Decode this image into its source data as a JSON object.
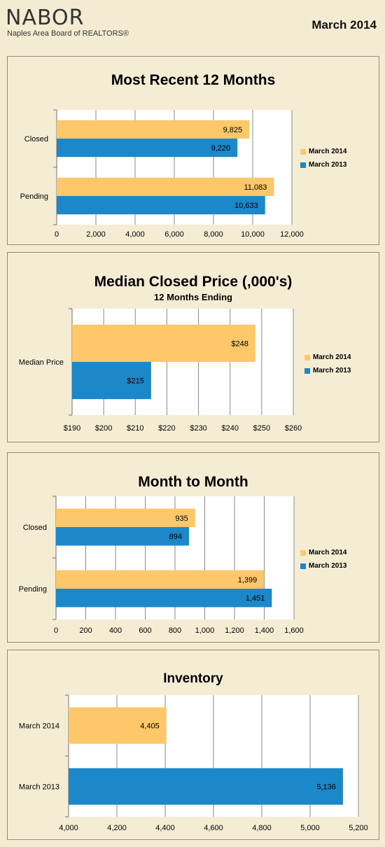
{
  "header": {
    "logo_name": "NABOR",
    "logo_tagline": "Naples Area Board of REALTORS®",
    "report_date": "March 2014"
  },
  "colors": {
    "series_2014": "#fdc76a",
    "series_2013": "#1c87c9"
  },
  "chart_data": [
    {
      "type": "bar",
      "orientation": "horizontal",
      "title": "Most Recent 12 Months",
      "categories": [
        "Closed",
        "Pending"
      ],
      "series": [
        {
          "name": "March 2014",
          "values": [
            9825,
            11083
          ],
          "labels": [
            "9,825",
            "11,083"
          ]
        },
        {
          "name": "March 2013",
          "values": [
            9220,
            10633
          ],
          "labels": [
            "9,220",
            "10,633"
          ]
        }
      ],
      "xlim": [
        0,
        12000
      ],
      "ticks": [
        0,
        2000,
        4000,
        6000,
        8000,
        10000,
        12000
      ],
      "tick_labels": [
        "0",
        "2,000",
        "4,000",
        "6,000",
        "8,000",
        "10,000",
        "12,000"
      ],
      "grid": true,
      "legend": "right"
    },
    {
      "type": "bar",
      "orientation": "horizontal",
      "title": "Median Closed Price (,000's)",
      "subtitle": "12 Months Ending",
      "categories": [
        "Median Price"
      ],
      "series": [
        {
          "name": "March 2014",
          "values": [
            248
          ],
          "labels": [
            "$248"
          ]
        },
        {
          "name": "March 2013",
          "values": [
            215
          ],
          "labels": [
            "$215"
          ]
        }
      ],
      "xlim": [
        190,
        260
      ],
      "ticks": [
        190,
        200,
        210,
        220,
        230,
        240,
        250,
        260
      ],
      "tick_labels": [
        "$190",
        "$200",
        "$210",
        "$220",
        "$230",
        "$240",
        "$250",
        "$260"
      ],
      "grid": true,
      "legend": "right"
    },
    {
      "type": "bar",
      "orientation": "horizontal",
      "title": "Month to Month",
      "categories": [
        "Closed",
        "Pending"
      ],
      "series": [
        {
          "name": "March 2014",
          "values": [
            935,
            1399
          ],
          "labels": [
            "935",
            "1,399"
          ]
        },
        {
          "name": "March 2013",
          "values": [
            894,
            1451
          ],
          "labels": [
            "894",
            "1,451"
          ]
        }
      ],
      "xlim": [
        0,
        1600
      ],
      "ticks": [
        0,
        200,
        400,
        600,
        800,
        1000,
        1200,
        1400,
        1600
      ],
      "tick_labels": [
        "0",
        "200",
        "400",
        "600",
        "800",
        "1,000",
        "1,200",
        "1,400",
        "1,600"
      ],
      "grid": true,
      "legend": "right"
    },
    {
      "type": "bar",
      "orientation": "horizontal",
      "title": "Inventory",
      "categories": [
        "March 2014",
        "March 2013"
      ],
      "values": [
        4405,
        5136
      ],
      "labels": [
        "4,405",
        "5,136"
      ],
      "colors": [
        "#fdc76a",
        "#1c87c9"
      ],
      "xlim": [
        4000,
        5200
      ],
      "ticks": [
        4000,
        4200,
        4400,
        4600,
        4800,
        5000,
        5200
      ],
      "tick_labels": [
        "4,000",
        "4,200",
        "4,400",
        "4,600",
        "4,800",
        "5,000",
        "5,200"
      ],
      "grid": true
    }
  ]
}
